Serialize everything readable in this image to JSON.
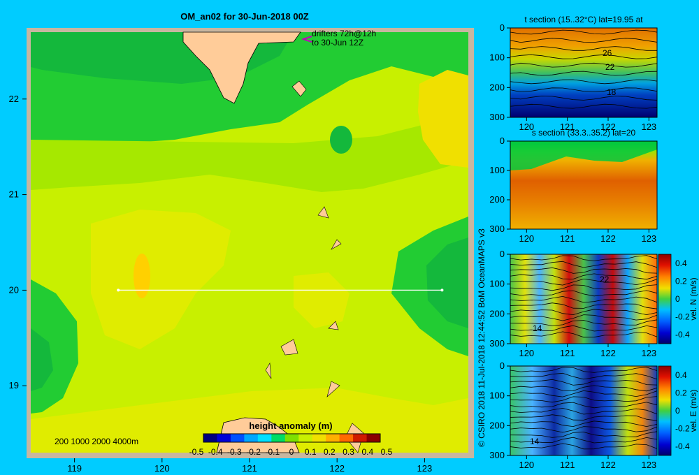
{
  "title": "OM_an02 for 30-Jun-2018 00Z",
  "drifter_note": [
    "drifters 72h@12h",
    "to 30-Jun 12Z"
  ],
  "main_map": {
    "lon_ticks": [
      "119",
      "120",
      "121",
      "122",
      "123"
    ],
    "lat_ticks": [
      "22",
      "21",
      "20",
      "19"
    ],
    "section_line": {
      "lat": 20,
      "lon_start": 119.5,
      "lon_end": 123.2
    },
    "depth_legend": "200  1000  2000  4000m"
  },
  "colorbar": {
    "label": "height anomaly  (m)",
    "ticks": [
      "-0.5",
      "-0.4",
      "-0.3",
      "-0.2",
      "-0.1",
      "0",
      "0.1",
      "0.2",
      "0.3",
      "0.4",
      "0.5"
    ],
    "colors": [
      "#00007f",
      "#0000d8",
      "#0050ff",
      "#00a8ff",
      "#00e0ff",
      "#00dc64",
      "#7ee000",
      "#c8f000",
      "#f0e000",
      "#ffb000",
      "#ff6a00",
      "#d01a00",
      "#8a0000"
    ]
  },
  "credit": "© CSIRO 2018   11-Jul-2018 12:44:52 BoM OceanMAPS v3",
  "panels": [
    {
      "title": "t section (15..32°C) lat=19.95 at",
      "x_ticks": [
        "120",
        "121",
        "122",
        "123"
      ],
      "y_ticks": [
        "0",
        "100",
        "200",
        "300"
      ],
      "contour_labels": [
        "26",
        "22",
        "18"
      ]
    },
    {
      "title": "s section (33.3..35.2) lat=20",
      "x_ticks": [
        "120",
        "121",
        "122",
        "123"
      ],
      "y_ticks": [
        "0",
        "100",
        "200",
        "300"
      ]
    },
    {
      "title": "",
      "x_ticks": [
        "120",
        "121",
        "122",
        "123"
      ],
      "y_ticks": [
        "0",
        "100",
        "200",
        "300"
      ],
      "contour_labels": [
        "22",
        "14"
      ],
      "colorbar_ticks": [
        "0.4",
        "0.2",
        "0",
        "-0.2",
        "-0.4"
      ],
      "colorbar_label": "vel. N  (m/s)"
    },
    {
      "title": "",
      "x_ticks": [
        "120",
        "121",
        "122",
        "123"
      ],
      "y_ticks": [
        "0",
        "100",
        "200",
        "300"
      ],
      "contour_labels": [
        "14"
      ],
      "colorbar_ticks": [
        "0.4",
        "0.2",
        "0",
        "-0.2",
        "-0.4"
      ],
      "colorbar_label": "vel. E  (m/s)"
    }
  ]
}
